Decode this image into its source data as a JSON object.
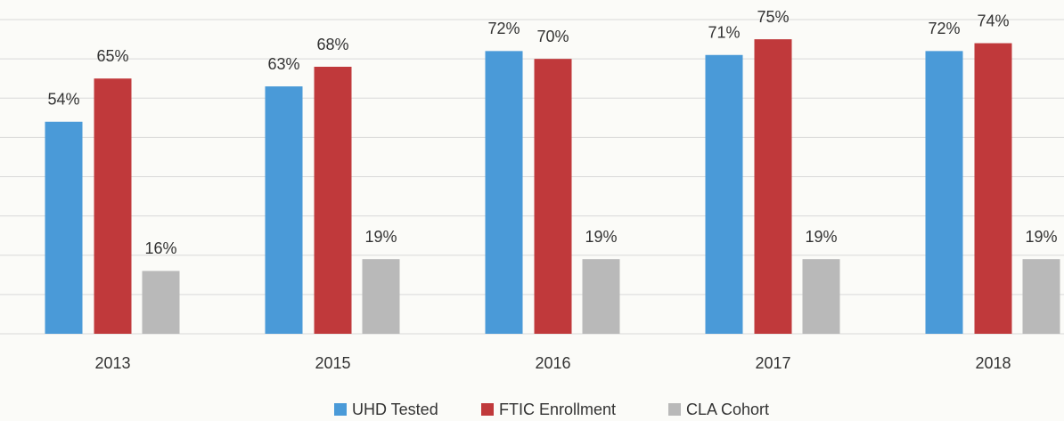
{
  "chart_data": {
    "type": "bar",
    "categories": [
      "2013",
      "2015",
      "2016",
      "2017",
      "2018"
    ],
    "series": [
      {
        "name": "UHD Tested",
        "color": "#4a9ad8",
        "values": [
          54,
          63,
          72,
          71,
          72
        ],
        "value_labels": [
          "54%",
          "63%",
          "72%",
          "71%",
          "72%"
        ]
      },
      {
        "name": "FTIC Enrollment",
        "color": "#c0393b",
        "values": [
          65,
          68,
          70,
          75,
          74
        ],
        "value_labels": [
          "65%",
          "68%",
          "70%",
          "75%",
          "74%"
        ]
      },
      {
        "name": "CLA Cohort",
        "color": "#b9b9b9",
        "values": [
          16,
          19,
          19,
          19,
          19
        ],
        "value_labels": [
          "16%",
          "19%",
          "19%",
          "19%",
          "19%"
        ]
      }
    ],
    "ylim": [
      0,
      85
    ],
    "yticks": [
      0,
      10,
      20,
      30,
      40,
      50,
      60,
      70,
      80
    ],
    "grid": true,
    "legend": "bottom"
  }
}
